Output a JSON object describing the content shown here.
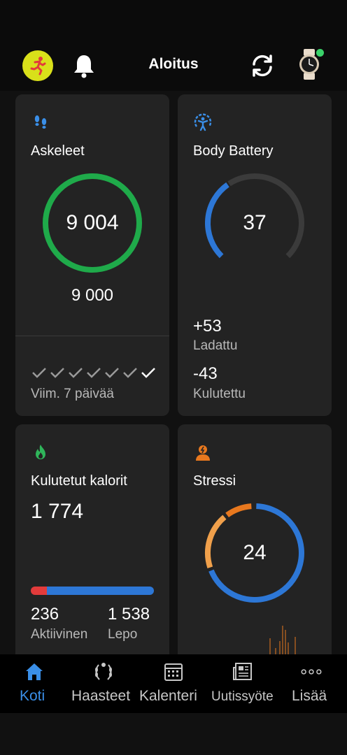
{
  "header": {
    "title": "Aloitus",
    "avatar_icon": "runner-icon",
    "notification_icon": "bell-icon",
    "sync_icon": "sync-icon",
    "device_icon": "watch-icon",
    "device_status_color": "#3ad26a"
  },
  "steps": {
    "title": "Askeleet",
    "icon": "footsteps-icon",
    "value": "9 004",
    "goal": "9 000",
    "progress": 1.0,
    "week_label": "Viim. 7 päivää",
    "days_checked": 7,
    "ring_color": "#1faa4a"
  },
  "body_battery": {
    "title": "Body Battery",
    "icon": "body-battery-icon",
    "value": "37",
    "level": 0.37,
    "charged_value": "+53",
    "charged_label": "Ladattu",
    "drained_value": "-43",
    "drained_label": "Kulutettu",
    "color": "#2d77d6"
  },
  "calories": {
    "title": "Kulutetut kalorit",
    "icon": "flame-icon",
    "value": "1 774",
    "active_value": "236",
    "active_label": "Aktiivinen",
    "rest_value": "1 538",
    "rest_label": "Lepo",
    "active_color": "#e23b3b",
    "rest_color": "#2d77d6"
  },
  "stress": {
    "title": "Stressi",
    "icon": "stress-icon",
    "value": "24",
    "rest_color": "#2d77d6",
    "low_color": "#f0a04b",
    "medium_color": "#e8781e"
  },
  "tabs": [
    {
      "label": "Koti",
      "icon": "home-icon",
      "active": true
    },
    {
      "label": "Haasteet",
      "icon": "laurel-icon",
      "active": false
    },
    {
      "label": "Kalenteri",
      "icon": "calendar-icon",
      "active": false
    },
    {
      "label": "Uutissyöte",
      "icon": "newsfeed-icon",
      "active": false
    },
    {
      "label": "Lisää",
      "icon": "more-icon",
      "active": false
    }
  ]
}
